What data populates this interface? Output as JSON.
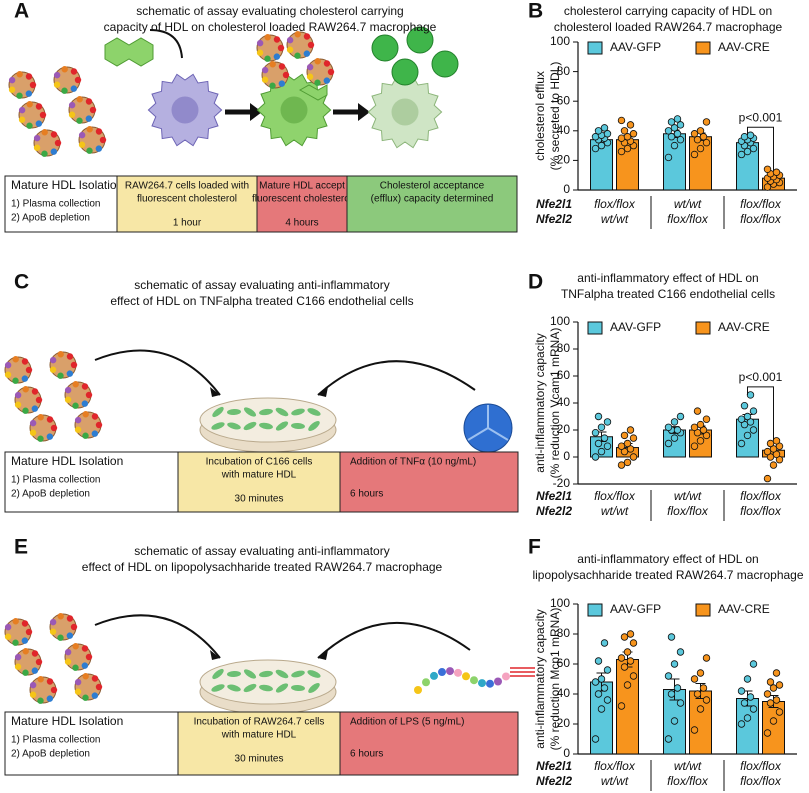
{
  "schematics": [
    {
      "panel": "A",
      "title": [
        "schematic of assay evaluating cholesterol carrying",
        "capacity of HDL on cholesterol loaded RAW264.7 macrophage"
      ],
      "boxes": [
        {
          "color": "#ffffff",
          "lines": [
            "Mature HDL Isolation",
            "1) Plasma collection",
            "2) ApoB depletion"
          ]
        },
        {
          "color": "#f7e7a6",
          "lines": [
            "RAW264.7 cells loaded with",
            "fluorescent cholesterol",
            "1 hour"
          ]
        },
        {
          "color": "#e5787a",
          "lines": [
            "Mature HDL accept",
            "fluorescent cholesterol",
            "4 hours"
          ]
        },
        {
          "color": "#8cc97c",
          "lines": [
            "Cholesterol acceptance",
            "(efflux) capacity determined"
          ]
        }
      ]
    },
    {
      "panel": "C",
      "title": [
        "schematic of assay evaluating anti-inflammatory",
        "effect of HDL on TNFalpha treated C166 endothelial cells"
      ],
      "boxes": [
        {
          "color": "#ffffff",
          "lines": [
            "Mature HDL Isolation",
            "1) Plasma collection",
            "2) ApoB depletion"
          ]
        },
        {
          "color": "#f7e7a6",
          "lines": [
            "Incubation of C166 cells",
            "with mature HDL",
            "30 minutes"
          ]
        },
        {
          "color": "#e5787a",
          "lines": [
            "Addition of TNFα (10 ng/mL)",
            "6 hours"
          ]
        }
      ]
    },
    {
      "panel": "E",
      "title": [
        "schematic of assay evaluating anti-inflammatory",
        "effect of HDL on lipopolysachharide treated RAW264.7 macrophage"
      ],
      "boxes": [
        {
          "color": "#ffffff",
          "lines": [
            "Mature HDL Isolation",
            "1) Plasma collection",
            "2) ApoB depletion"
          ]
        },
        {
          "color": "#f7e7a6",
          "lines": [
            "Incubation of RAW264.7 cells",
            "with mature HDL",
            "30 minutes"
          ]
        },
        {
          "color": "#e5787a",
          "lines": [
            "Addition of LPS (5 ng/mL)",
            "6 hours"
          ]
        }
      ]
    }
  ],
  "chart_data": [
    {
      "type": "bar",
      "panel": "B",
      "title": [
        "cholesterol carrying capacity of HDL on",
        "cholesterol loaded RAW264.7 macrophage"
      ],
      "ylabel": [
        "cholesterol efflux",
        "(% secreted to HDL)"
      ],
      "categories": [
        null,
        null,
        null
      ],
      "genotype_rows": [
        {
          "name": "Nfe2l1",
          "labels": [
            "flox/flox",
            "wt/wt",
            "flox/flox"
          ]
        },
        {
          "name": "Nfe2l2",
          "labels": [
            "wt/wt",
            "flox/flox",
            "flox/flox"
          ]
        }
      ],
      "group_colors": [
        "#e0262b",
        "#2e3192",
        "#92278f"
      ],
      "series": [
        {
          "name": "AAV-GFP",
          "color": "#5bc8dc",
          "values": [
            34,
            38,
            32
          ],
          "errors": [
            2,
            2.5,
            1.5
          ],
          "points": [
            [
              28,
              30,
              32,
              34,
              35,
              36,
              37,
              38,
              40,
              42
            ],
            [
              22,
              30,
              34,
              36,
              38,
              40,
              42,
              44,
              46,
              48
            ],
            [
              24,
              26,
              28,
              30,
              32,
              33,
              34,
              35,
              36,
              37
            ]
          ]
        },
        {
          "name": "AAV-CRE",
          "color": "#f7941d",
          "values": [
            34,
            36,
            8
          ],
          "errors": [
            2,
            2.5,
            1
          ],
          "points": [
            [
              26,
              28,
              30,
              32,
              33,
              35,
              36,
              38,
              40,
              44,
              47
            ],
            [
              24,
              28,
              32,
              34,
              36,
              38,
              40,
              46
            ],
            [
              2,
              4,
              5,
              6,
              7,
              8,
              9,
              10,
              11,
              12,
              14
            ]
          ]
        }
      ],
      "annotations": [
        {
          "text": "p<0.001"
        }
      ],
      "ylim": [
        0,
        100
      ],
      "yticks": [
        0,
        20,
        40,
        60,
        80,
        100
      ]
    },
    {
      "type": "bar",
      "panel": "D",
      "title": [
        "anti-inflammatory effect of HDL on",
        "TNFalpha treated C166 endothelial cells"
      ],
      "ylabel": [
        "anti-inflammatory capacity",
        "(% reduction Vcam1 mRNA)"
      ],
      "categories": [
        null,
        null,
        null
      ],
      "genotype_rows": [
        {
          "name": "Nfe2l1",
          "labels": [
            "flox/flox",
            "wt/wt",
            "flox/flox"
          ]
        },
        {
          "name": "Nfe2l2",
          "labels": [
            "wt/wt",
            "flox/flox",
            "flox/flox"
          ]
        }
      ],
      "group_colors": [
        "#e0262b",
        "#2e3192",
        "#92278f"
      ],
      "series": [
        {
          "name": "AAV-GFP",
          "color": "#5bc8dc",
          "values": [
            15,
            20,
            28
          ],
          "errors": [
            3.5,
            2.5,
            3.5
          ],
          "points": [
            [
              0,
              4,
              8,
              10,
              14,
              18,
              22,
              26,
              30
            ],
            [
              10,
              14,
              18,
              20,
              20,
              22,
              26,
              30
            ],
            [
              10,
              16,
              20,
              24,
              26,
              28,
              30,
              34,
              38,
              46
            ]
          ]
        },
        {
          "name": "AAV-CRE",
          "color": "#f7941d",
          "values": [
            7,
            20,
            5
          ],
          "errors": [
            3,
            3,
            3
          ],
          "points": [
            [
              -6,
              -4,
              0,
              4,
              6,
              8,
              10,
              14,
              16,
              20
            ],
            [
              8,
              12,
              16,
              18,
              20,
              22,
              24,
              28,
              34
            ],
            [
              -16,
              -6,
              -2,
              0,
              2,
              4,
              6,
              8,
              10,
              12
            ]
          ]
        }
      ],
      "annotations": [
        {
          "text": "p<0.001"
        }
      ],
      "ylim": [
        -20,
        100
      ],
      "yticks": [
        -20,
        0,
        20,
        40,
        60,
        80,
        100
      ]
    },
    {
      "type": "bar",
      "panel": "F",
      "title": [
        "anti-inflammatory effect of HDL on",
        "lipopolysachharide treated RAW264.7 macrophage"
      ],
      "ylabel": [
        "anti-inflammatory capacity",
        "(% reduction Mcp1 mRNA)"
      ],
      "categories": [
        null,
        null,
        null
      ],
      "genotype_rows": [
        {
          "name": "Nfe2l1",
          "labels": [
            "flox/flox",
            "wt/wt",
            "flox/flox"
          ]
        },
        {
          "name": "Nfe2l2",
          "labels": [
            "wt/wt",
            "flox/flox",
            "flox/flox"
          ]
        }
      ],
      "group_colors": [
        "#e0262b",
        "#2e3192",
        "#92278f"
      ],
      "series": [
        {
          "name": "AAV-GFP",
          "color": "#5bc8dc",
          "values": [
            48,
            43,
            37
          ],
          "errors": [
            6,
            7,
            5
          ],
          "points": [
            [
              10,
              30,
              36,
              40,
              44,
              48,
              50,
              56,
              62,
              74
            ],
            [
              10,
              22,
              34,
              40,
              44,
              52,
              60,
              68,
              78
            ],
            [
              20,
              24,
              30,
              34,
              38,
              42,
              50,
              60
            ]
          ]
        },
        {
          "name": "AAV-CRE",
          "color": "#f7941d",
          "values": [
            63,
            42,
            35
          ],
          "errors": [
            5,
            5,
            4
          ],
          "points": [
            [
              32,
              46,
              52,
              58,
              62,
              64,
              68,
              74,
              78,
              80
            ],
            [
              16,
              30,
              36,
              40,
              44,
              50,
              54,
              64
            ],
            [
              14,
              22,
              28,
              34,
              36,
              40,
              44,
              46,
              48,
              54
            ]
          ]
        }
      ],
      "ylim": [
        0,
        100
      ],
      "yticks": [
        0,
        20,
        40,
        60,
        80,
        100
      ]
    }
  ]
}
